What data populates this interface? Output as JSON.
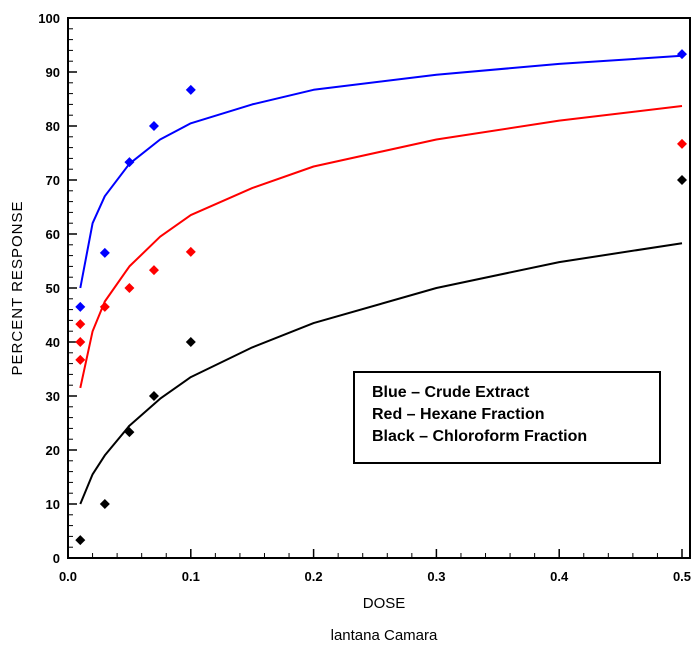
{
  "chart_data": {
    "type": "scatter",
    "xlabel": "DOSE",
    "ylabel": "PERCENT RESPONSE",
    "caption": "lantana Camara",
    "xlim": [
      0,
      0.5
    ],
    "ylim": [
      0,
      100
    ],
    "x_ticks": [
      "0.0",
      "0.1",
      "0.2",
      "0.3",
      "0.4",
      "0.5"
    ],
    "y_ticks": [
      "0",
      "10",
      "20",
      "30",
      "40",
      "50",
      "60",
      "70",
      "80",
      "90",
      "100"
    ],
    "grid": false,
    "legend": {
      "placement": "bottom-right",
      "entries": [
        "Blue – Crude Extract",
        "Red – Hexane Fraction",
        "Black – Chloroform Fraction"
      ]
    },
    "series": [
      {
        "color": "#0000ff",
        "points": [
          [
            0.01,
            46.5
          ],
          [
            0.03,
            56.5
          ],
          [
            0.05,
            73.3
          ],
          [
            0.07,
            80.0
          ],
          [
            0.1,
            86.7
          ],
          [
            0.5,
            93.3
          ]
        ],
        "fit": [
          [
            0.01,
            50
          ],
          [
            0.02,
            62
          ],
          [
            0.03,
            67
          ],
          [
            0.05,
            73
          ],
          [
            0.075,
            77.5
          ],
          [
            0.1,
            80.5
          ],
          [
            0.15,
            84
          ],
          [
            0.2,
            86.7
          ],
          [
            0.3,
            89.5
          ],
          [
            0.4,
            91.5
          ],
          [
            0.5,
            93
          ]
        ]
      },
      {
        "color": "#ff0000",
        "points": [
          [
            0.01,
            43.3
          ],
          [
            0.01,
            40.0
          ],
          [
            0.01,
            36.7
          ],
          [
            0.03,
            46.5
          ],
          [
            0.05,
            50.0
          ],
          [
            0.07,
            53.3
          ],
          [
            0.1,
            56.7
          ],
          [
            0.5,
            76.7
          ]
        ],
        "fit": [
          [
            0.01,
            31.5
          ],
          [
            0.02,
            42
          ],
          [
            0.03,
            47.5
          ],
          [
            0.05,
            54
          ],
          [
            0.075,
            59.5
          ],
          [
            0.1,
            63.5
          ],
          [
            0.15,
            68.5
          ],
          [
            0.2,
            72.5
          ],
          [
            0.3,
            77.5
          ],
          [
            0.4,
            81
          ],
          [
            0.5,
            83.7
          ]
        ]
      },
      {
        "color": "#000000",
        "points": [
          [
            0.01,
            3.3
          ],
          [
            0.03,
            10.0
          ],
          [
            0.05,
            23.3
          ],
          [
            0.07,
            30.0
          ],
          [
            0.1,
            40.0
          ],
          [
            0.5,
            70.0
          ]
        ],
        "fit": [
          [
            0.01,
            10
          ],
          [
            0.02,
            15.5
          ],
          [
            0.03,
            19
          ],
          [
            0.05,
            24.5
          ],
          [
            0.075,
            29.5
          ],
          [
            0.1,
            33.5
          ],
          [
            0.15,
            39
          ],
          [
            0.2,
            43.5
          ],
          [
            0.3,
            50
          ],
          [
            0.4,
            54.8
          ],
          [
            0.5,
            58.3
          ]
        ]
      }
    ]
  }
}
